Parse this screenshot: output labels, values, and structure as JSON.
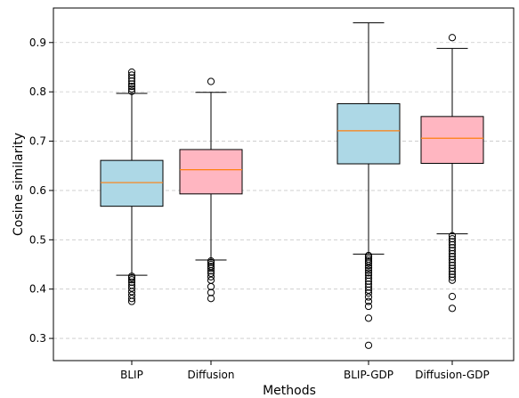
{
  "chart_data": {
    "type": "box",
    "xlabel": "Methods",
    "ylabel": "Cosine similarity",
    "ylim": [
      0.255,
      0.97
    ],
    "yticks": [
      0.3,
      0.4,
      0.5,
      0.6,
      0.7,
      0.8,
      0.9
    ],
    "ytick_labels": [
      "0.3",
      "0.4",
      "0.5",
      "0.6",
      "0.7",
      "0.8",
      "0.9"
    ],
    "grid": "horizontal dashed",
    "categories": [
      "BLIP",
      "Diffusion",
      "BLIP-GDP",
      "Diffusion-GDP"
    ],
    "series": [
      {
        "category": "BLIP",
        "color": "#add8e6",
        "whisker_low": 0.428,
        "q1": 0.568,
        "median": 0.616,
        "q3": 0.661,
        "whisker_high": 0.797,
        "outliers": [
          0.375,
          0.381,
          0.388,
          0.395,
          0.402,
          0.408,
          0.414,
          0.419,
          0.423,
          0.426,
          0.801,
          0.806,
          0.811,
          0.816,
          0.822,
          0.828,
          0.834,
          0.84
        ]
      },
      {
        "category": "Diffusion",
        "color": "#ffb6c1",
        "whisker_low": 0.459,
        "q1": 0.593,
        "median": 0.642,
        "q3": 0.683,
        "whisker_high": 0.799,
        "outliers": [
          0.381,
          0.393,
          0.405,
          0.418,
          0.425,
          0.432,
          0.437,
          0.442,
          0.446,
          0.45,
          0.454,
          0.457,
          0.821
        ]
      },
      {
        "category": "BLIP-GDP",
        "color": "#add8e6",
        "whisker_low": 0.471,
        "q1": 0.654,
        "median": 0.721,
        "q3": 0.776,
        "whisker_high": 0.94,
        "outliers": [
          0.286,
          0.341,
          0.365,
          0.375,
          0.384,
          0.392,
          0.398,
          0.404,
          0.41,
          0.416,
          0.422,
          0.428,
          0.433,
          0.438,
          0.443,
          0.448,
          0.453,
          0.457,
          0.461,
          0.465,
          0.468
        ]
      },
      {
        "category": "Diffusion-GDP",
        "color": "#ffb6c1",
        "whisker_low": 0.512,
        "q1": 0.655,
        "median": 0.706,
        "q3": 0.75,
        "whisker_high": 0.888,
        "outliers": [
          0.361,
          0.385,
          0.418,
          0.424,
          0.43,
          0.436,
          0.442,
          0.448,
          0.454,
          0.46,
          0.466,
          0.472,
          0.478,
          0.484,
          0.49,
          0.496,
          0.502,
          0.508,
          0.91
        ]
      }
    ]
  }
}
